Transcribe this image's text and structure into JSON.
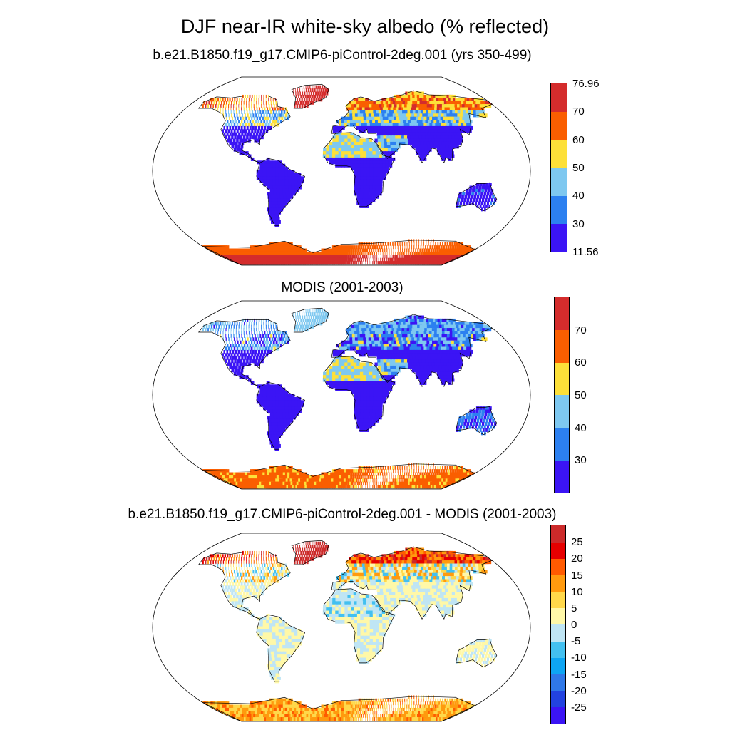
{
  "title": "DJF near-IR white-sky albedo (% reflected)",
  "panels": [
    {
      "id": "model",
      "subtitle": "b.e21.B1850.f19_g17.CMIP6-piControl-2deg.001 (yrs 350-499)",
      "colorbar": {
        "colors": [
          "#3b14f5",
          "#2c80f0",
          "#7ec8f0",
          "#fde039",
          "#fa5e00",
          "#d42c2c"
        ],
        "labels": [
          "76.96",
          "70",
          "60",
          "50",
          "40",
          "30",
          "11.56"
        ]
      }
    },
    {
      "id": "obs",
      "subtitle": "MODIS (2001-2003)",
      "colorbar": {
        "colors": [
          "#3b14f5",
          "#2c80f0",
          "#7ec8f0",
          "#fde039",
          "#fa5e00",
          "#d42c2c"
        ],
        "labels": [
          "70",
          "60",
          "50",
          "40",
          "30"
        ]
      }
    },
    {
      "id": "diff",
      "subtitle": "b.e21.B1850.f19_g17.CMIP6-piControl-2deg.001 - MODIS (2001-2003)",
      "colorbar": {
        "colors": [
          "#3b14f5",
          "#2242e0",
          "#2f78e8",
          "#0ea5f3",
          "#43c0f0",
          "#bfe5f4",
          "#fff8a8",
          "#ffd84a",
          "#ff9a0e",
          "#ff5a00",
          "#e60000",
          "#cc2a2a"
        ],
        "labels": [
          "25",
          "20",
          "15",
          "10",
          "5",
          "0",
          "-5",
          "-10",
          "-15",
          "-20",
          "-25"
        ]
      }
    }
  ]
}
